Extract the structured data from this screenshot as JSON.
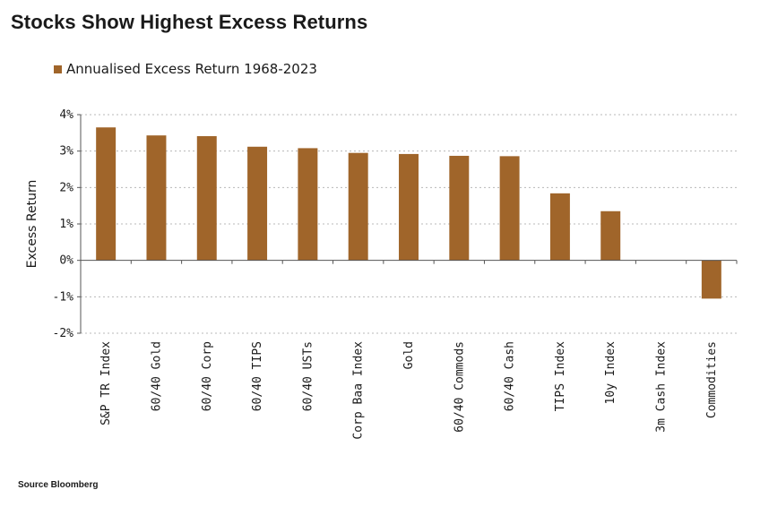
{
  "title": "Stocks Show Highest Excess Returns",
  "source": "Source Bloomberg",
  "colors": {
    "bar": "#A0652A",
    "grid": "#b8b8b8",
    "axis": "#555555"
  },
  "chart_data": {
    "type": "bar",
    "categories": [
      "S&P TR Index",
      "60/40 Gold",
      "60/40 Corp",
      "60/40 TIPS",
      "60/40 USTs",
      "Corp Baa Index",
      "Gold",
      "60/40 Commods",
      "60/40 Cash",
      "TIPS Index",
      "10y Index",
      "3m Cash Index",
      "Commodities"
    ],
    "series": [
      {
        "name": "Annualised Excess Return 1968-2023",
        "values": [
          3.65,
          3.43,
          3.41,
          3.12,
          3.08,
          2.95,
          2.92,
          2.87,
          2.86,
          1.84,
          1.35,
          0.0,
          -1.05
        ]
      }
    ],
    "ylabel": "Excess Return",
    "xlabel": "",
    "ylim": [
      -2,
      4
    ],
    "yticks": [
      4,
      3,
      2,
      1,
      0,
      -1,
      -2
    ],
    "ytick_labels": [
      "4%",
      "3%",
      "2%",
      "1%",
      "0%",
      "-1%",
      "-2%"
    ],
    "grid": true,
    "legend_position": "top-left"
  }
}
